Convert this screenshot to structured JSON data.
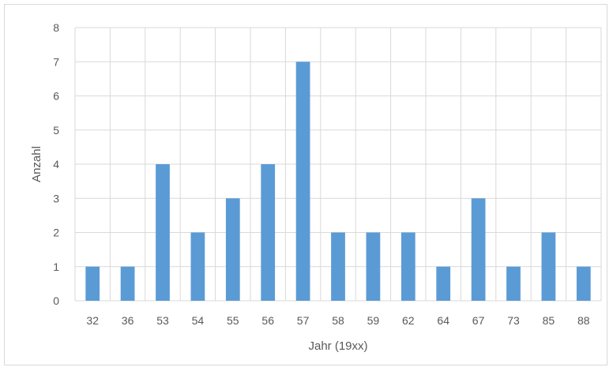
{
  "chart_data": {
    "type": "bar",
    "categories": [
      "32",
      "36",
      "53",
      "54",
      "55",
      "56",
      "57",
      "58",
      "59",
      "62",
      "64",
      "67",
      "73",
      "85",
      "88"
    ],
    "values": [
      1,
      1,
      4,
      2,
      3,
      4,
      7,
      2,
      2,
      2,
      1,
      3,
      1,
      2,
      1
    ],
    "title": "",
    "xlabel": "Jahr (19xx)",
    "ylabel": "Anzahl",
    "ylim": [
      0,
      8
    ],
    "yticks": [
      "0",
      "1",
      "2",
      "3",
      "4",
      "5",
      "6",
      "7",
      "8"
    ],
    "grid": "vertical and horizontal",
    "legend": "none",
    "colors": {
      "bar": "#5b9bd5",
      "grid": "#d9d9d9",
      "text": "#595959"
    }
  }
}
